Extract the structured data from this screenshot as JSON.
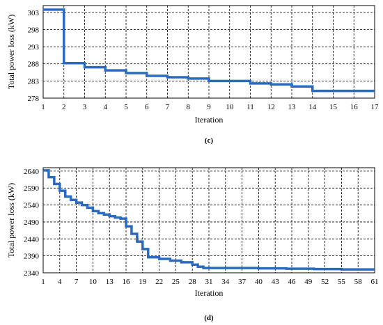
{
  "chart_data": [
    {
      "type": "line",
      "step": true,
      "panel_label": "(c)",
      "xlabel": "Iteration",
      "ylabel": "Total power loss (kW)",
      "xlim": [
        1,
        17
      ],
      "ylim": [
        278,
        305
      ],
      "x_ticks": [
        1,
        2,
        3,
        4,
        5,
        6,
        7,
        8,
        9,
        10,
        11,
        12,
        13,
        14,
        15,
        16,
        17
      ],
      "y_ticks": [
        278,
        283,
        288,
        293,
        298,
        303
      ],
      "grid": true,
      "series": [
        {
          "color": "#2a6bbf",
          "x": [
            1,
            2,
            3,
            4,
            5,
            6,
            7,
            8,
            9,
            10,
            11,
            12,
            13,
            14,
            15,
            16,
            17
          ],
          "y": [
            303.8,
            288.2,
            287.0,
            286.1,
            285.3,
            284.5,
            284.1,
            283.7,
            283.0,
            283.0,
            282.3,
            282.0,
            281.4,
            280.1,
            280.1,
            280.1,
            280.1
          ]
        }
      ]
    },
    {
      "type": "line",
      "step": true,
      "panel_label": "(d)",
      "xlabel": "Iteration",
      "ylabel": "Total power loss (kW)",
      "xlim": [
        1,
        61
      ],
      "ylim": [
        2340,
        2650
      ],
      "x_ticks": [
        1,
        4,
        7,
        10,
        13,
        16,
        19,
        22,
        25,
        28,
        31,
        34,
        37,
        40,
        43,
        46,
        49,
        52,
        55,
        58,
        61
      ],
      "y_ticks": [
        2340,
        2390,
        2440,
        2490,
        2540,
        2590,
        2640
      ],
      "grid": true,
      "series": [
        {
          "color": "#2a6bbf",
          "x": [
            1,
            2,
            3,
            4,
            5,
            6,
            7,
            8,
            9,
            10,
            11,
            12,
            13,
            14,
            15,
            16,
            17,
            18,
            19,
            20,
            22,
            24,
            26,
            28,
            29,
            30,
            35,
            40,
            45,
            50,
            55,
            61
          ],
          "y": [
            2642,
            2622,
            2602,
            2582,
            2565,
            2555,
            2547,
            2540,
            2532,
            2522,
            2516,
            2512,
            2507,
            2503,
            2500,
            2477,
            2455,
            2432,
            2410,
            2386,
            2381,
            2376,
            2371,
            2364,
            2358,
            2354,
            2354,
            2353,
            2352,
            2351,
            2350,
            2350
          ]
        }
      ]
    }
  ]
}
